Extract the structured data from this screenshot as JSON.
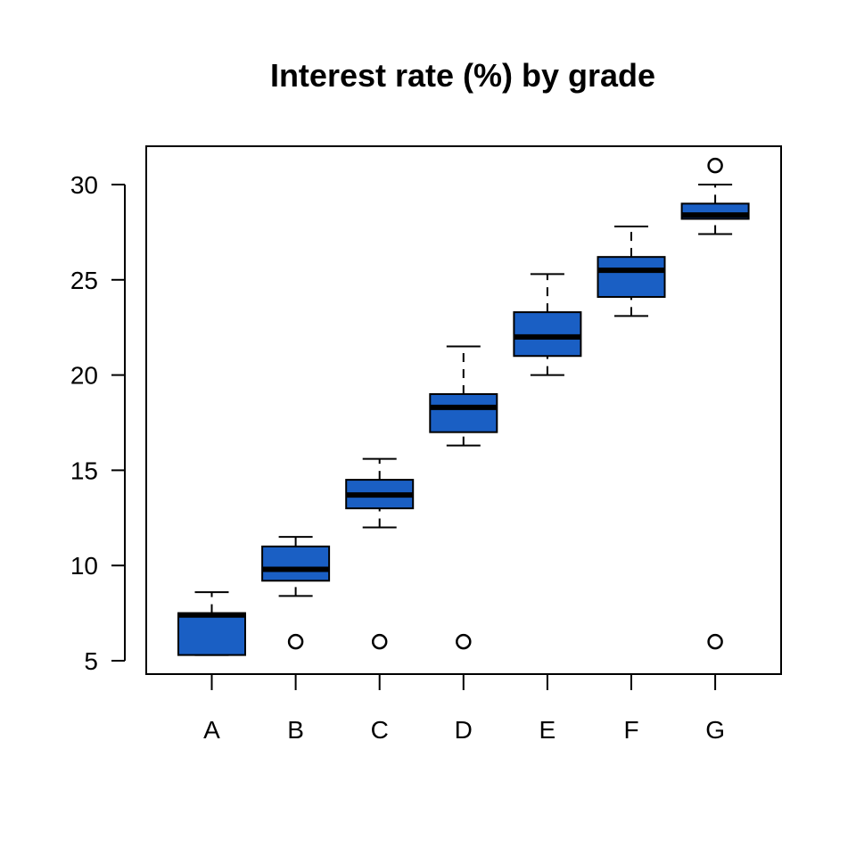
{
  "chart_data": {
    "type": "boxplot",
    "title": "Interest rate (%) by grade",
    "xlabel": "",
    "ylabel": "",
    "ylim": [
      4.5,
      32
    ],
    "yticks": [
      5,
      10,
      15,
      20,
      25,
      30
    ],
    "categories": [
      "A",
      "B",
      "C",
      "D",
      "E",
      "F",
      "G"
    ],
    "box_color": "#1a5fc4",
    "boxes": [
      {
        "category": "A",
        "whisker_low": 5.3,
        "q1": 5.3,
        "median": 7.4,
        "q3": 7.5,
        "whisker_high": 8.6,
        "outliers": []
      },
      {
        "category": "B",
        "whisker_low": 8.4,
        "q1": 9.2,
        "median": 9.8,
        "q3": 11.0,
        "whisker_high": 11.5,
        "outliers": [
          6.0
        ]
      },
      {
        "category": "C",
        "whisker_low": 12.0,
        "q1": 13.0,
        "median": 13.7,
        "q3": 14.5,
        "whisker_high": 15.6,
        "outliers": [
          6.0
        ]
      },
      {
        "category": "D",
        "whisker_low": 16.3,
        "q1": 17.0,
        "median": 18.3,
        "q3": 19.0,
        "whisker_high": 21.5,
        "outliers": [
          6.0
        ]
      },
      {
        "category": "E",
        "whisker_low": 20.0,
        "q1": 21.0,
        "median": 22.0,
        "q3": 23.3,
        "whisker_high": 25.3,
        "outliers": []
      },
      {
        "category": "F",
        "whisker_low": 23.1,
        "q1": 24.1,
        "median": 25.5,
        "q3": 26.2,
        "whisker_high": 27.8,
        "outliers": []
      },
      {
        "category": "G",
        "whisker_low": 27.4,
        "q1": 28.2,
        "median": 28.4,
        "q3": 29.0,
        "whisker_high": 30.0,
        "outliers": [
          31.0,
          6.0
        ]
      }
    ]
  }
}
